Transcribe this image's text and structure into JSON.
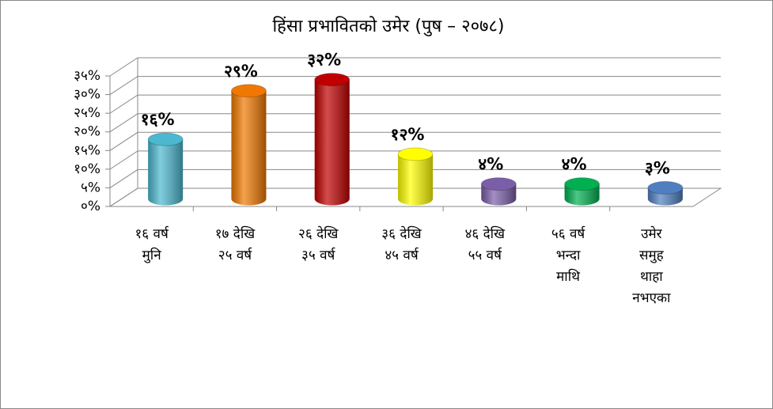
{
  "chart_data": {
    "type": "bar",
    "title": "हिंसा प्रभावितको उमेर (पुष – २०७८)",
    "categories": [
      "१६ वर्ष\nमुनि",
      "१७ देखि\n२५ वर्ष",
      "२६ देखि\n३५ वर्ष",
      "३६ देखि\n४५ वर्ष",
      "४६ देखि\n५५ वर्ष",
      "५६ वर्ष\nभन्दा\nमाथि",
      "उमेर\nसमुह\nथाहा\nनभएका"
    ],
    "values": [
      16,
      29,
      32,
      12,
      4,
      4,
      3
    ],
    "value_labels": [
      "१६%",
      "२९%",
      "३२%",
      "१२%",
      "४%",
      "४%",
      "३%"
    ],
    "colors": [
      "#4bb8d0",
      "#f07800",
      "#c00000",
      "#ffff00",
      "#7a5ea8",
      "#00b050",
      "#4f7fc0"
    ],
    "ylim": [
      0,
      35
    ],
    "yticks": [
      {
        "value": 0,
        "label": "०%"
      },
      {
        "value": 5,
        "label": "५%"
      },
      {
        "value": 10,
        "label": "१०%"
      },
      {
        "value": 15,
        "label": "१५%"
      },
      {
        "value": 20,
        "label": "२०%"
      },
      {
        "value": 25,
        "label": "२५%"
      },
      {
        "value": 30,
        "label": "३०%"
      },
      {
        "value": 35,
        "label": "३५%"
      }
    ],
    "grid": true
  }
}
